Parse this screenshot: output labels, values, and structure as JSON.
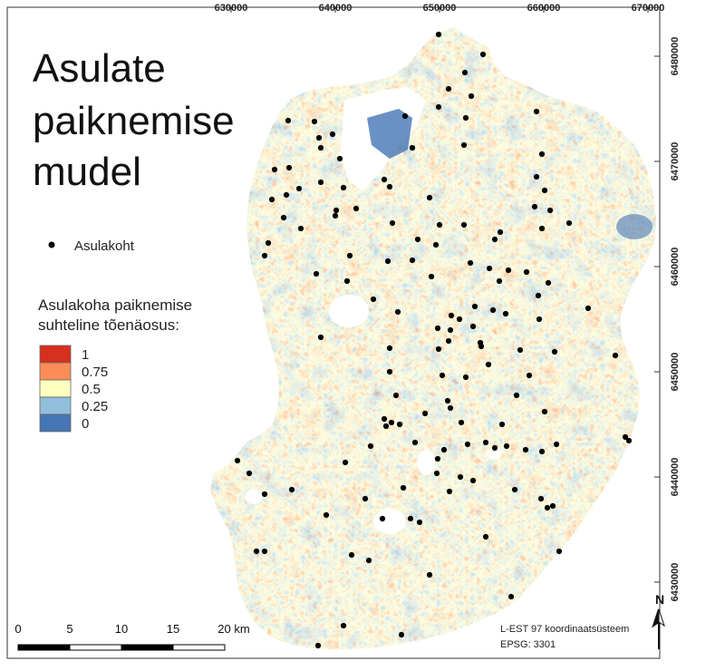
{
  "map": {
    "title_lines": [
      "Asulate",
      "paiknemise",
      "mudel"
    ],
    "x_ticks": [
      "630000",
      "640000",
      "650000",
      "660000",
      "670000"
    ],
    "y_ticks": [
      "6480000",
      "6470000",
      "6460000",
      "6450000",
      "6440000",
      "6430000"
    ],
    "legend": {
      "point_label": "Asulakoht",
      "ramp_title_lines": [
        "Asulakoha paiknemise",
        "suhteline tõenäosus:"
      ],
      "classes": [
        {
          "label": "1",
          "color": "#d7301f"
        },
        {
          "label": "0.75",
          "color": "#fc8d59"
        },
        {
          "label": "0.5",
          "color": "#ffffbf"
        },
        {
          "label": "0.25",
          "color": "#91bfdb"
        },
        {
          "label": "0",
          "color": "#4575b4"
        }
      ]
    },
    "scale_bar": {
      "ticks": [
        "0",
        "5",
        "10",
        "15",
        "20 km"
      ]
    },
    "crs": {
      "line1": "L-EST 97 koordinaatsüsteem",
      "line2": "EPSG: 3301"
    },
    "north_label": "N",
    "colors": {
      "low": "#4575b4",
      "mid": "#ffffbf",
      "high": "#d7301f",
      "point": "#000000"
    }
  }
}
